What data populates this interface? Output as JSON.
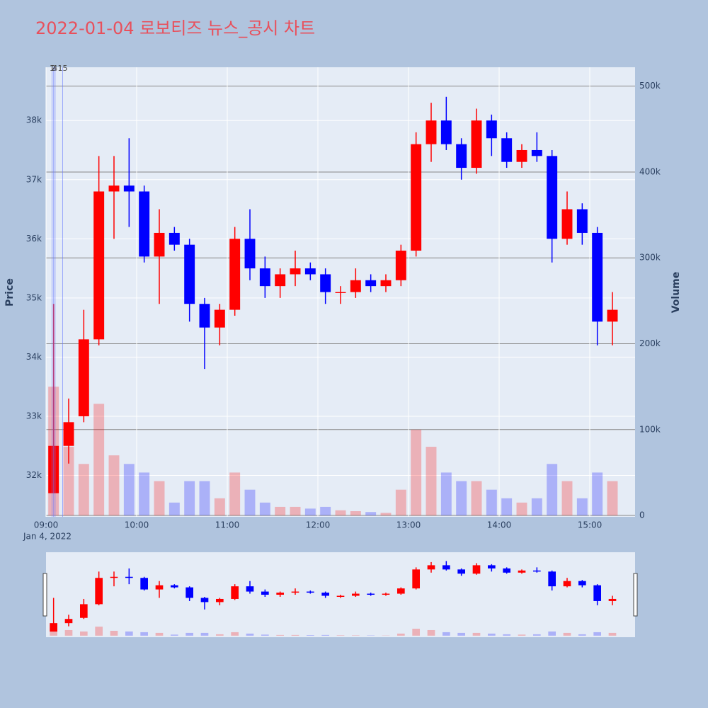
{
  "chart_data": {
    "type": "candlestick",
    "title": "2022-01-04 로보티즈 뉴스_공시 차트",
    "y_label": "Price",
    "y2_label": "Volume",
    "x": [
      "09:00",
      "09:10",
      "09:20",
      "09:30",
      "09:40",
      "09:50",
      "10:00",
      "10:10",
      "10:20",
      "10:30",
      "10:40",
      "10:50",
      "11:00",
      "11:10",
      "11:20",
      "11:30",
      "11:40",
      "11:50",
      "12:00",
      "12:10",
      "12:20",
      "12:30",
      "12:40",
      "12:50",
      "13:00",
      "13:10",
      "13:20",
      "13:30",
      "13:40",
      "13:50",
      "14:00",
      "14:10",
      "14:20",
      "14:30",
      "14:40",
      "14:50",
      "15:00",
      "15:10"
    ],
    "open": [
      31700,
      32500,
      33000,
      34300,
      36800,
      36900,
      36800,
      35700,
      36100,
      35900,
      34900,
      34500,
      34800,
      36000,
      35500,
      35200,
      35400,
      35500,
      35400,
      35100,
      35100,
      35300,
      35200,
      35300,
      35800,
      37600,
      38000,
      37600,
      37200,
      38000,
      37700,
      37300,
      37500,
      37400,
      36000,
      36500,
      36100,
      34600
    ],
    "high": [
      34900,
      33300,
      34800,
      37400,
      37400,
      37700,
      36900,
      36500,
      36200,
      36000,
      35000,
      34900,
      36200,
      36500,
      35700,
      35500,
      35800,
      35600,
      35500,
      35200,
      35500,
      35400,
      35400,
      35900,
      37800,
      38300,
      38400,
      37700,
      38200,
      38100,
      37800,
      37600,
      37800,
      37500,
      36800,
      36600,
      36200,
      35100
    ],
    "low": [
      31700,
      32200,
      32900,
      34200,
      36000,
      36200,
      35600,
      34900,
      35800,
      34600,
      33800,
      34200,
      34700,
      35300,
      35000,
      35000,
      35200,
      35300,
      34900,
      34900,
      35000,
      35100,
      35100,
      35200,
      35700,
      37300,
      37500,
      37000,
      37100,
      37400,
      37200,
      37200,
      37300,
      35600,
      35900,
      35900,
      34200,
      34200
    ],
    "close": [
      32500,
      32900,
      34300,
      36800,
      36900,
      36800,
      35700,
      36100,
      35900,
      34900,
      34500,
      34800,
      36000,
      35500,
      35200,
      35400,
      35500,
      35400,
      35100,
      35100,
      35300,
      35200,
      35300,
      35800,
      37600,
      38000,
      37600,
      37200,
      38000,
      37700,
      37300,
      37500,
      37400,
      36000,
      36500,
      36100,
      34600,
      34800
    ],
    "volume": [
      150000,
      80000,
      60000,
      130000,
      70000,
      60000,
      50000,
      40000,
      15000,
      40000,
      40000,
      20000,
      50000,
      30000,
      15000,
      10000,
      10000,
      8000,
      10000,
      6000,
      5000,
      4000,
      3000,
      30000,
      100000,
      80000,
      50000,
      40000,
      40000,
      30000,
      20000,
      15000,
      20000,
      60000,
      40000,
      20000,
      50000,
      40000
    ],
    "increasing_color": "#ff0000",
    "decreasing_color": "#0000ff",
    "xlim": [
      "09:00",
      "15:30"
    ],
    "xticks": [
      "09:00",
      "10:00",
      "11:00",
      "12:00",
      "13:00",
      "14:00",
      "15:00"
    ],
    "x_date_label": "Jan 4, 2022",
    "ylim": [
      31300,
      38900
    ],
    "yticks": [
      {
        "value": 32000,
        "label": "32k"
      },
      {
        "value": 33000,
        "label": "33k"
      },
      {
        "value": 34000,
        "label": "34k"
      },
      {
        "value": 35000,
        "label": "35k"
      },
      {
        "value": 36000,
        "label": "36k"
      },
      {
        "value": 37000,
        "label": "37k"
      },
      {
        "value": 38000,
        "label": "38k"
      }
    ],
    "y2lim": [
      -1600,
      522000
    ],
    "y2ticks": [
      0,
      {
        "value": 100000,
        "label": "100k"
      },
      {
        "value": 200000,
        "label": "200k"
      },
      {
        "value": 300000,
        "label": "300k"
      },
      {
        "value": 400000,
        "label": "400k"
      },
      {
        "value": 500000,
        "label": "500k"
      }
    ],
    "annotations": [
      {
        "x": "09:04",
        "text": "1"
      },
      {
        "x": "09:05",
        "text": "2"
      },
      {
        "x": "09:06",
        "text": "4"
      },
      {
        "x": "09:11",
        "text": "15"
      }
    ],
    "grid": true,
    "rangeslider": true
  }
}
